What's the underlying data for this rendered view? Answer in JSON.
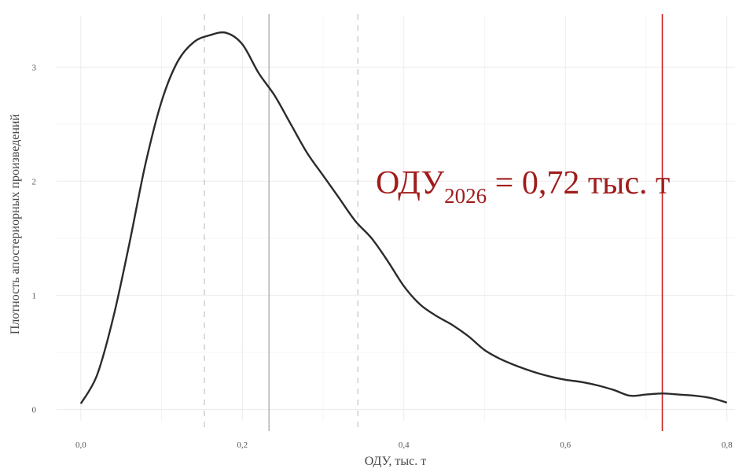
{
  "chart_data": {
    "type": "line",
    "xlabel": "ОДУ, тыс. т",
    "ylabel": "Плотность апостериорных произведений",
    "xlim": [
      -0.03,
      0.81
    ],
    "ylim": [
      -0.1,
      3.45
    ],
    "x_ticks": [
      0.0,
      0.2,
      0.4,
      0.6,
      0.8
    ],
    "x_tick_labels": [
      "0,0",
      "0,2",
      "0,4",
      "0,6",
      "0,8"
    ],
    "y_ticks": [
      0,
      1,
      2,
      3
    ],
    "y_tick_labels": [
      "0",
      "1",
      "2",
      "3"
    ],
    "grid": true,
    "series": [
      {
        "x": [
          0.0,
          0.02,
          0.04,
          0.06,
          0.08,
          0.1,
          0.12,
          0.14,
          0.16,
          0.18,
          0.2,
          0.22,
          0.24,
          0.26,
          0.28,
          0.3,
          0.32,
          0.34,
          0.36,
          0.38,
          0.4,
          0.42,
          0.44,
          0.46,
          0.48,
          0.5,
          0.52,
          0.54,
          0.56,
          0.58,
          0.6,
          0.62,
          0.64,
          0.66,
          0.68,
          0.7,
          0.72,
          0.74,
          0.76,
          0.78,
          0.8
        ],
        "y": [
          0.05,
          0.3,
          0.8,
          1.45,
          2.15,
          2.7,
          3.05,
          3.22,
          3.28,
          3.3,
          3.2,
          2.95,
          2.75,
          2.5,
          2.25,
          2.05,
          1.85,
          1.65,
          1.5,
          1.3,
          1.08,
          0.92,
          0.82,
          0.74,
          0.64,
          0.52,
          0.44,
          0.38,
          0.33,
          0.29,
          0.26,
          0.24,
          0.21,
          0.17,
          0.12,
          0.13,
          0.14,
          0.13,
          0.12,
          0.1,
          0.06
        ],
        "color": "#2b2b2b"
      }
    ],
    "reference_lines": [
      {
        "x": 0.153,
        "style": "dashed",
        "color": "#c8c8c8"
      },
      {
        "x": 0.233,
        "style": "solid",
        "color": "#a8a8a8"
      },
      {
        "x": 0.343,
        "style": "dashed",
        "color": "#c8c8c8"
      },
      {
        "x": 0.72,
        "style": "solid",
        "color": "#cc1f1f"
      }
    ],
    "annotation": {
      "prefix": "ОДУ",
      "subscript": "2026",
      "suffix": " = 0,72 тыс. т",
      "color": "#a01c1c"
    }
  }
}
